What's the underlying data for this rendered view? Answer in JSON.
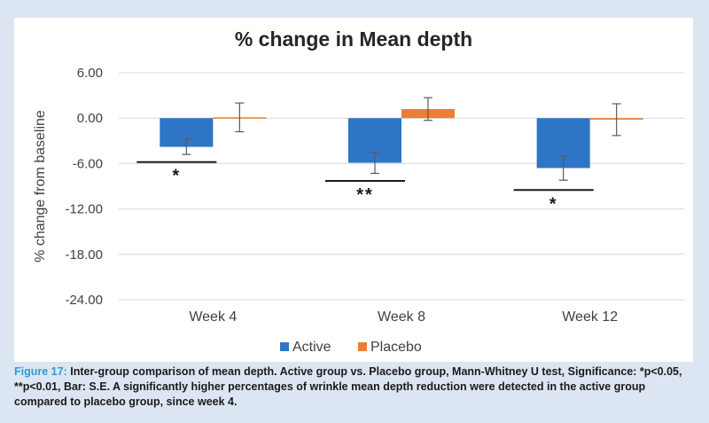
{
  "chart_data": {
    "type": "bar",
    "title": "% change in Mean depth",
    "ylabel": "% change from baseline",
    "xlabel": "",
    "categories": [
      "Week 4",
      "Week 8",
      "Week 12"
    ],
    "ylim": [
      -24,
      6
    ],
    "yticks": [
      6,
      0,
      -6,
      -12,
      -18,
      -24
    ],
    "ytick_labels": [
      "6.00",
      "0.00",
      "-6.00",
      "-12.00",
      "-18.00",
      "-24.00"
    ],
    "grid": true,
    "legend_position": "bottom",
    "series": [
      {
        "name": "Active",
        "color": "#2e75c6",
        "values": [
          -3.8,
          -5.9,
          -6.6
        ],
        "se": [
          1.0,
          1.4,
          1.6
        ]
      },
      {
        "name": "Placebo",
        "color": "#ed7d31",
        "values": [
          0.1,
          1.2,
          -0.2
        ],
        "se": [
          1.9,
          1.5,
          2.1
        ]
      }
    ],
    "significance": [
      {
        "category": "Week 4",
        "label": "*",
        "y": -5.8
      },
      {
        "category": "Week 8",
        "label": "**",
        "y": -8.3
      },
      {
        "category": "Week 12",
        "label": "*",
        "y": -9.5
      }
    ]
  },
  "caption": {
    "label": "Figure 17:",
    "text": " Inter-group comparison of mean depth. Active group vs. Placebo group, Mann-Whitney U test, Significance: *p<0.05, **p<0.01, Bar: S.E. A significantly higher percentages of wrinkle mean depth reduction were detected in the active group compared to placebo group, since week 4."
  }
}
